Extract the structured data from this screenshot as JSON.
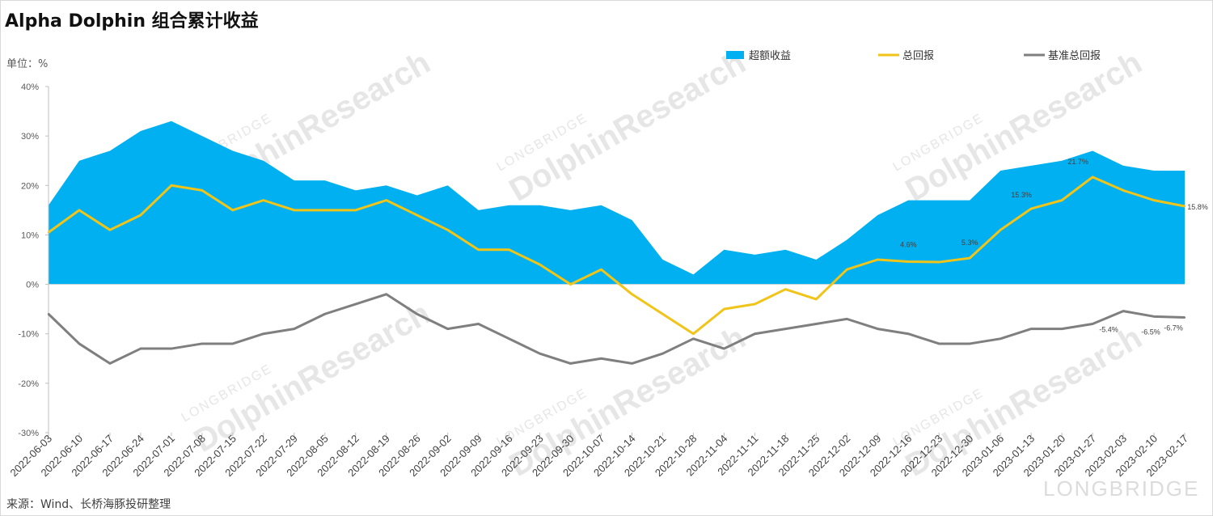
{
  "title": "Alpha Dolphin 组合累计收益",
  "unit": "单位：%",
  "source": "来源：Wind、长桥海豚投研整理",
  "chart_data": {
    "type": "line",
    "ylim": [
      -30,
      40
    ],
    "yticks": [
      -30,
      -20,
      -10,
      0,
      10,
      20,
      30,
      40
    ],
    "ytick_labels": [
      "-30%",
      "-20%",
      "-10%",
      "0%",
      "10%",
      "20%",
      "30%",
      "40%"
    ],
    "grid": false,
    "legend_position": "top-right",
    "x": [
      "2022-06-03",
      "2022-06-10",
      "2022-06-17",
      "2022-06-24",
      "2022-07-01",
      "2022-07-08",
      "2022-07-15",
      "2022-07-22",
      "2022-07-29",
      "2022-08-05",
      "2022-08-12",
      "2022-08-19",
      "2022-08-26",
      "2022-09-02",
      "2022-09-09",
      "2022-09-16",
      "2022-09-23",
      "2022-09-30",
      "2022-10-07",
      "2022-10-14",
      "2022-10-21",
      "2022-10-28",
      "2022-11-04",
      "2022-11-11",
      "2022-11-18",
      "2022-11-25",
      "2022-12-02",
      "2022-12-09",
      "2022-12-16",
      "2022-12-23",
      "2022-12-30",
      "2023-01-06",
      "2023-01-13",
      "2023-01-20",
      "2023-01-27",
      "2023-02-03",
      "2023-02-10",
      "2023-02-17"
    ],
    "series": [
      {
        "name": "超额收益",
        "type": "area",
        "color": "#00b0f0",
        "values": [
          16,
          25,
          27,
          31,
          33,
          30,
          27,
          25,
          21,
          21,
          19,
          20,
          18,
          20,
          15,
          16,
          16,
          15,
          16,
          13,
          5,
          2,
          7,
          6,
          7,
          5,
          9,
          14,
          17,
          17,
          17,
          23,
          24,
          25,
          27,
          24,
          23,
          23
        ]
      },
      {
        "name": "总回报",
        "type": "line",
        "color": "#f0c419",
        "values": [
          10.5,
          15,
          11,
          14,
          20,
          19,
          15,
          17,
          15,
          15,
          15,
          17,
          14,
          11,
          7,
          7,
          4,
          0,
          3,
          -2,
          -6,
          -10,
          -5,
          -4,
          -1,
          -3,
          3,
          5,
          4.6,
          4.5,
          5.3,
          11,
          15.3,
          17,
          21.7,
          19,
          17,
          15.8
        ]
      },
      {
        "name": "基准总回报",
        "type": "line",
        "color": "#7f7f7f",
        "values": [
          -6,
          -12,
          -16,
          -13,
          -13,
          -12,
          -12,
          -10,
          -9,
          -6,
          -4,
          -2,
          -6,
          -9,
          -8,
          -11,
          -14,
          -16,
          -15,
          -16,
          -14,
          -11,
          -13,
          -10,
          -9,
          -8,
          -7,
          -9,
          -10,
          -12,
          -12,
          -11,
          -9,
          -9,
          -8,
          -5.4,
          -6.5,
          -6.7
        ]
      }
    ],
    "annotations": [
      {
        "series": "总回报",
        "x": "2022-12-16",
        "label": "4.6%"
      },
      {
        "series": "总回报",
        "x": "2022-12-30",
        "label": "5.3%"
      },
      {
        "series": "总回报",
        "x": "2023-01-13",
        "label": "15.3%"
      },
      {
        "series": "总回报",
        "x": "2023-01-27",
        "label": "21.7%"
      },
      {
        "series": "总回报",
        "x": "2023-02-17",
        "label": "15.8%"
      },
      {
        "series": "基准总回报",
        "x": "2023-02-03",
        "label": "-5.4%"
      },
      {
        "series": "基准总回报",
        "x": "2023-02-10",
        "label": "-6.5%"
      },
      {
        "series": "基准总回报",
        "x": "2023-02-17",
        "label": "-6.7%"
      }
    ]
  },
  "watermark": {
    "brand": "DolphinResearch",
    "sub": "LONGBRIDGE",
    "footer_logo": "LONGBRIDGE"
  }
}
